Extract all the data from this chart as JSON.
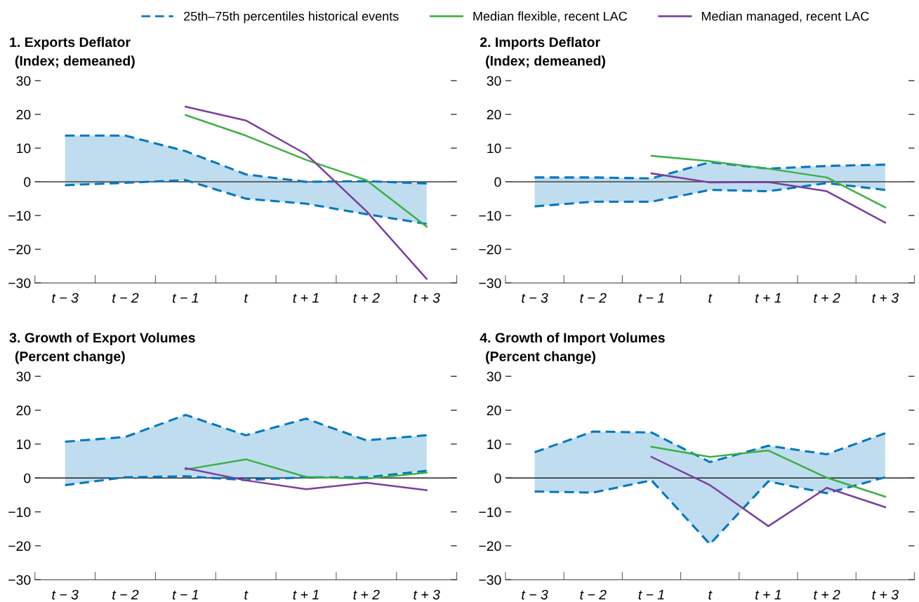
{
  "chart_data": [
    {
      "type": "line",
      "title": "1. Exports Deflator",
      "subtitle": "(Index; demeaned)",
      "categories": [
        "t − 3",
        "t − 2",
        "t − 1",
        "t",
        "t + 1",
        "t + 2",
        "t + 3"
      ],
      "ylim": [
        -30,
        30
      ],
      "yticks": [
        -30,
        -20,
        -10,
        0,
        10,
        20,
        30
      ],
      "legend": "top",
      "ref_lines": [
        {
          "axis": "y",
          "value": 0,
          "color": "#555555"
        }
      ],
      "series": [
        {
          "name": "25th–75th percentiles historical events",
          "color": "#0077c0",
          "line_style": "dashed",
          "values": [
            13.7,
            13.7,
            9.1,
            2.2,
            0,
            0.2,
            -0.5
          ],
          "lower": [
            -1,
            -0.3,
            0.5,
            -5,
            -6.5,
            -9.6,
            -12.5
          ],
          "upper": [
            13.7,
            13.7,
            9.1,
            2.2,
            0,
            0.2,
            -0.5
          ]
        },
        {
          "color": "#0077c0",
          "line_style": "dashed",
          "values": [
            -1,
            -0.3,
            0.5,
            -5,
            -6.5,
            -9.6,
            -12.5
          ]
        },
        {
          "name": "Median flexible, recent LAC",
          "color": "#3cb043",
          "line_style": "solid",
          "values": [
            null,
            null,
            19.8,
            13.7,
            6.5,
            0.5,
            -13.3
          ]
        },
        {
          "name": "Median managed, recent LAC",
          "color": "#7b3f9e",
          "line_style": "solid",
          "values": [
            null,
            null,
            22.3,
            18.2,
            8.2,
            -8.7,
            -28.8
          ]
        }
      ]
    },
    {
      "type": "line",
      "title": "2. Imports Deflator",
      "subtitle": "(Index; demeaned)",
      "categories": [
        "t − 3",
        "t − 2",
        "t − 1",
        "t",
        "t + 1",
        "t + 2",
        "t + 3"
      ],
      "ylim": [
        -30,
        30
      ],
      "yticks": [
        -30,
        -20,
        -10,
        0,
        10,
        20,
        30
      ],
      "ref_lines": [
        {
          "axis": "y",
          "value": 0,
          "color": "#555555"
        }
      ],
      "series": [
        {
          "color": "#0077c0",
          "line_style": "dashed",
          "values": [
            1.3,
            1.3,
            1.0,
            5.8,
            3.9,
            4.7,
            5.1
          ],
          "lower": [
            -7.3,
            -5.9,
            -5.9,
            -2.4,
            -2.8,
            -0.4,
            -2.4
          ],
          "upper": [
            1.3,
            1.3,
            1.0,
            5.8,
            3.9,
            4.7,
            5.1
          ]
        },
        {
          "color": "#0077c0",
          "line_style": "dashed",
          "values": [
            -7.3,
            -5.9,
            -5.9,
            -2.4,
            -2.8,
            -0.4,
            -2.4
          ]
        },
        {
          "color": "#3cb043",
          "line_style": "solid",
          "values": [
            null,
            null,
            7.7,
            6.1,
            3.9,
            1.3,
            -7.6
          ]
        },
        {
          "color": "#7b3f9e",
          "line_style": "solid",
          "values": [
            null,
            null,
            2.5,
            -0.2,
            -0.1,
            -2.8,
            -12.1
          ]
        }
      ]
    },
    {
      "type": "line",
      "title": "3. Growth of Export Volumes",
      "subtitle": "(Percent change)",
      "categories": [
        "t − 3",
        "t − 2",
        "t − 1",
        "t",
        "t + 1",
        "t + 2",
        "t + 3"
      ],
      "ylim": [
        -30,
        30
      ],
      "yticks": [
        -30,
        -20,
        -10,
        0,
        10,
        20,
        30
      ],
      "ref_lines": [
        {
          "axis": "y",
          "value": 0,
          "color": "#222222"
        }
      ],
      "series": [
        {
          "color": "#0077c0",
          "line_style": "dashed",
          "values": [
            10.7,
            12.1,
            18.6,
            12.6,
            17.5,
            11.1,
            12.6
          ],
          "lower": [
            -2.1,
            0.2,
            0.5,
            -0.6,
            0.2,
            0.2,
            2.1
          ],
          "upper": [
            10.7,
            12.1,
            18.6,
            12.6,
            17.5,
            11.1,
            12.6
          ]
        },
        {
          "color": "#0077c0",
          "line_style": "dashed",
          "values": [
            -2.1,
            0.2,
            0.5,
            -0.6,
            0.2,
            0.2,
            2.1
          ]
        },
        {
          "color": "#3cb043",
          "line_style": "solid",
          "values": [
            null,
            null,
            2.5,
            5.5,
            0.3,
            -0.2,
            1.6
          ]
        },
        {
          "color": "#7b3f9e",
          "line_style": "solid",
          "values": [
            null,
            null,
            2.9,
            -0.7,
            -3.3,
            -1.4,
            -3.6
          ]
        }
      ]
    },
    {
      "type": "line",
      "title": "4. Growth of Import Volumes",
      "subtitle": "(Percent change)",
      "categories": [
        "t − 3",
        "t − 2",
        "t − 1",
        "t",
        "t + 1",
        "t + 2",
        "t + 3"
      ],
      "ylim": [
        -30,
        30
      ],
      "yticks": [
        -30,
        -20,
        -10,
        0,
        10,
        20,
        30
      ],
      "ref_lines": [
        {
          "axis": "y",
          "value": 0,
          "color": "#222222"
        }
      ],
      "series": [
        {
          "color": "#0077c0",
          "line_style": "dashed",
          "values": [
            7.6,
            13.7,
            13.4,
            4.7,
            9.5,
            7.0,
            13.2
          ],
          "lower": [
            -4,
            -4.3,
            -0.7,
            -19.5,
            -1,
            -4.5,
            0.2
          ],
          "upper": [
            7.6,
            13.7,
            13.4,
            4.7,
            9.5,
            7.0,
            13.2
          ]
        },
        {
          "color": "#0077c0",
          "line_style": "dashed",
          "values": [
            -4,
            -4.3,
            -0.7,
            -19.5,
            -1,
            -4.5,
            0.2
          ]
        },
        {
          "color": "#3cb043",
          "line_style": "solid",
          "values": [
            null,
            null,
            9.2,
            6.2,
            8.1,
            0.1,
            -5.5
          ]
        },
        {
          "color": "#7b3f9e",
          "line_style": "solid",
          "values": [
            null,
            null,
            6.2,
            -2.1,
            -14.2,
            -2.9,
            -8.6
          ]
        }
      ]
    }
  ]
}
